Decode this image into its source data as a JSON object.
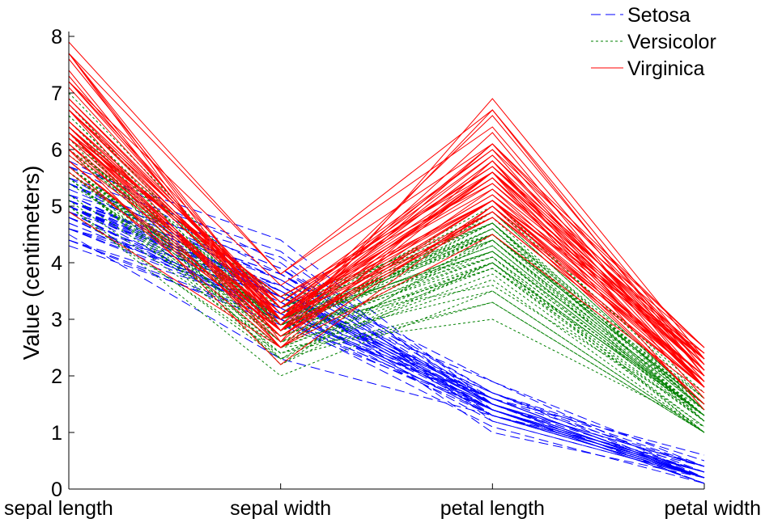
{
  "chart_data": {
    "type": "line",
    "subtype": "parallel-coordinates",
    "title": "",
    "xlabel": "",
    "ylabel": "Value (centimeters)",
    "categories": [
      "sepal length",
      "sepal width",
      "petal length",
      "petal width"
    ],
    "ylim": [
      0,
      8
    ],
    "yticks": [
      "0",
      "1",
      "2",
      "3",
      "4",
      "5",
      "6",
      "7",
      "8"
    ],
    "grid": false,
    "legend": {
      "position": "top-right",
      "boxed": false
    },
    "series": [
      {
        "name": "Setosa",
        "color": "#0000ff",
        "line_style": "dashed",
        "values": [
          [
            5.1,
            3.5,
            1.4,
            0.2
          ],
          [
            4.9,
            3.0,
            1.4,
            0.2
          ],
          [
            4.7,
            3.2,
            1.3,
            0.2
          ],
          [
            4.6,
            3.1,
            1.5,
            0.2
          ],
          [
            5.0,
            3.6,
            1.4,
            0.2
          ],
          [
            5.4,
            3.9,
            1.7,
            0.4
          ],
          [
            4.6,
            3.4,
            1.4,
            0.3
          ],
          [
            5.0,
            3.4,
            1.5,
            0.2
          ],
          [
            4.4,
            2.9,
            1.4,
            0.2
          ],
          [
            4.9,
            3.1,
            1.5,
            0.1
          ],
          [
            5.4,
            3.7,
            1.5,
            0.2
          ],
          [
            4.8,
            3.4,
            1.6,
            0.2
          ],
          [
            4.8,
            3.0,
            1.4,
            0.1
          ],
          [
            4.3,
            3.0,
            1.1,
            0.1
          ],
          [
            5.8,
            4.0,
            1.2,
            0.2
          ],
          [
            5.7,
            4.4,
            1.5,
            0.4
          ],
          [
            5.4,
            3.9,
            1.3,
            0.4
          ],
          [
            5.1,
            3.5,
            1.4,
            0.3
          ],
          [
            5.7,
            3.8,
            1.7,
            0.3
          ],
          [
            5.1,
            3.8,
            1.5,
            0.3
          ],
          [
            5.4,
            3.4,
            1.7,
            0.2
          ],
          [
            5.1,
            3.7,
            1.5,
            0.4
          ],
          [
            4.6,
            3.6,
            1.0,
            0.2
          ],
          [
            5.1,
            3.3,
            1.7,
            0.5
          ],
          [
            4.8,
            3.4,
            1.9,
            0.2
          ],
          [
            5.0,
            3.0,
            1.6,
            0.2
          ],
          [
            5.0,
            3.4,
            1.6,
            0.4
          ],
          [
            5.2,
            3.5,
            1.5,
            0.2
          ],
          [
            5.2,
            3.4,
            1.4,
            0.2
          ],
          [
            4.7,
            3.2,
            1.6,
            0.2
          ],
          [
            4.8,
            3.1,
            1.6,
            0.2
          ],
          [
            5.4,
            3.4,
            1.5,
            0.4
          ],
          [
            5.2,
            4.1,
            1.5,
            0.1
          ],
          [
            5.5,
            4.2,
            1.4,
            0.2
          ],
          [
            4.9,
            3.1,
            1.5,
            0.2
          ],
          [
            5.0,
            3.2,
            1.2,
            0.2
          ],
          [
            5.5,
            3.5,
            1.3,
            0.2
          ],
          [
            4.9,
            3.6,
            1.4,
            0.1
          ],
          [
            4.4,
            3.0,
            1.3,
            0.2
          ],
          [
            5.1,
            3.4,
            1.5,
            0.2
          ],
          [
            5.0,
            3.5,
            1.3,
            0.3
          ],
          [
            4.5,
            2.3,
            1.3,
            0.3
          ],
          [
            4.4,
            3.2,
            1.3,
            0.2
          ],
          [
            5.0,
            3.5,
            1.6,
            0.6
          ],
          [
            5.1,
            3.8,
            1.9,
            0.4
          ],
          [
            4.8,
            3.0,
            1.4,
            0.3
          ],
          [
            5.1,
            3.8,
            1.6,
            0.2
          ],
          [
            4.6,
            3.2,
            1.4,
            0.2
          ],
          [
            5.3,
            3.7,
            1.5,
            0.2
          ],
          [
            5.0,
            3.3,
            1.4,
            0.2
          ]
        ]
      },
      {
        "name": "Versicolor",
        "color": "#008000",
        "line_style": "dotted",
        "values": [
          [
            7.0,
            3.2,
            4.7,
            1.4
          ],
          [
            6.4,
            3.2,
            4.5,
            1.5
          ],
          [
            6.9,
            3.1,
            4.9,
            1.5
          ],
          [
            5.5,
            2.3,
            4.0,
            1.3
          ],
          [
            6.5,
            2.8,
            4.6,
            1.5
          ],
          [
            5.7,
            2.8,
            4.5,
            1.3
          ],
          [
            6.3,
            3.3,
            4.7,
            1.6
          ],
          [
            4.9,
            2.4,
            3.3,
            1.0
          ],
          [
            6.6,
            2.9,
            4.6,
            1.3
          ],
          [
            5.2,
            2.7,
            3.9,
            1.4
          ],
          [
            5.0,
            2.0,
            3.5,
            1.0
          ],
          [
            5.9,
            3.0,
            4.2,
            1.5
          ],
          [
            6.0,
            2.2,
            4.0,
            1.0
          ],
          [
            6.1,
            2.9,
            4.7,
            1.4
          ],
          [
            5.6,
            2.9,
            3.6,
            1.3
          ],
          [
            6.7,
            3.1,
            4.4,
            1.4
          ],
          [
            5.6,
            3.0,
            4.5,
            1.5
          ],
          [
            5.8,
            2.7,
            4.1,
            1.0
          ],
          [
            6.2,
            2.2,
            4.5,
            1.5
          ],
          [
            5.6,
            2.5,
            3.9,
            1.1
          ],
          [
            5.9,
            3.2,
            4.8,
            1.8
          ],
          [
            6.1,
            2.8,
            4.0,
            1.3
          ],
          [
            6.3,
            2.5,
            4.9,
            1.5
          ],
          [
            6.1,
            2.8,
            4.7,
            1.2
          ],
          [
            6.4,
            2.9,
            4.3,
            1.3
          ],
          [
            6.6,
            3.0,
            4.4,
            1.4
          ],
          [
            6.8,
            2.8,
            4.8,
            1.4
          ],
          [
            6.7,
            3.0,
            5.0,
            1.7
          ],
          [
            6.0,
            2.9,
            4.5,
            1.5
          ],
          [
            5.7,
            2.6,
            3.5,
            1.0
          ],
          [
            5.5,
            2.4,
            3.8,
            1.1
          ],
          [
            5.5,
            2.4,
            3.7,
            1.0
          ],
          [
            5.8,
            2.7,
            3.9,
            1.2
          ],
          [
            6.0,
            2.7,
            5.1,
            1.6
          ],
          [
            5.4,
            3.0,
            4.5,
            1.5
          ],
          [
            6.0,
            3.4,
            4.5,
            1.6
          ],
          [
            6.7,
            3.1,
            4.7,
            1.5
          ],
          [
            6.3,
            2.3,
            4.4,
            1.3
          ],
          [
            5.6,
            3.0,
            4.1,
            1.3
          ],
          [
            5.5,
            2.5,
            4.0,
            1.3
          ],
          [
            5.5,
            2.6,
            4.4,
            1.2
          ],
          [
            6.1,
            3.0,
            4.6,
            1.4
          ],
          [
            5.8,
            2.6,
            4.0,
            1.2
          ],
          [
            5.0,
            2.3,
            3.3,
            1.0
          ],
          [
            5.6,
            2.7,
            4.2,
            1.3
          ],
          [
            5.7,
            3.0,
            4.2,
            1.2
          ],
          [
            5.7,
            2.9,
            4.2,
            1.3
          ],
          [
            6.2,
            2.9,
            4.3,
            1.3
          ],
          [
            5.1,
            2.5,
            3.0,
            1.1
          ],
          [
            5.7,
            2.8,
            4.1,
            1.3
          ]
        ]
      },
      {
        "name": "Virginica",
        "color": "#ff0000",
        "line_style": "solid",
        "values": [
          [
            6.3,
            3.3,
            6.0,
            2.5
          ],
          [
            5.8,
            2.7,
            5.1,
            1.9
          ],
          [
            7.1,
            3.0,
            5.9,
            2.1
          ],
          [
            6.3,
            2.9,
            5.6,
            1.8
          ],
          [
            6.5,
            3.0,
            5.8,
            2.2
          ],
          [
            7.6,
            3.0,
            6.6,
            2.1
          ],
          [
            4.9,
            2.5,
            4.5,
            1.7
          ],
          [
            7.3,
            2.9,
            6.3,
            1.8
          ],
          [
            6.7,
            2.5,
            5.8,
            1.8
          ],
          [
            7.2,
            3.6,
            6.1,
            2.5
          ],
          [
            6.5,
            3.2,
            5.1,
            2.0
          ],
          [
            6.4,
            2.7,
            5.3,
            1.9
          ],
          [
            6.8,
            3.0,
            5.5,
            2.1
          ],
          [
            5.7,
            2.5,
            5.0,
            2.0
          ],
          [
            5.8,
            2.8,
            5.1,
            2.4
          ],
          [
            6.4,
            3.2,
            5.3,
            2.3
          ],
          [
            6.5,
            3.0,
            5.5,
            1.8
          ],
          [
            7.7,
            3.8,
            6.7,
            2.2
          ],
          [
            7.7,
            2.6,
            6.9,
            2.3
          ],
          [
            6.0,
            2.2,
            5.0,
            1.5
          ],
          [
            6.9,
            3.2,
            5.7,
            2.3
          ],
          [
            5.6,
            2.8,
            4.9,
            2.0
          ],
          [
            7.7,
            2.8,
            6.7,
            2.0
          ],
          [
            6.3,
            2.7,
            4.9,
            1.8
          ],
          [
            6.7,
            3.3,
            5.7,
            2.1
          ],
          [
            7.2,
            3.2,
            6.0,
            1.8
          ],
          [
            6.2,
            2.8,
            4.8,
            1.8
          ],
          [
            6.1,
            3.0,
            4.9,
            1.8
          ],
          [
            6.4,
            2.8,
            5.6,
            2.1
          ],
          [
            7.2,
            3.0,
            5.8,
            1.6
          ],
          [
            7.4,
            2.8,
            6.1,
            1.9
          ],
          [
            7.9,
            3.8,
            6.4,
            2.0
          ],
          [
            6.4,
            2.8,
            5.6,
            2.2
          ],
          [
            6.3,
            2.8,
            5.1,
            1.5
          ],
          [
            6.1,
            2.6,
            5.6,
            1.4
          ],
          [
            7.7,
            3.0,
            6.1,
            2.3
          ],
          [
            6.3,
            3.4,
            5.6,
            2.4
          ],
          [
            6.4,
            3.1,
            5.5,
            1.8
          ],
          [
            6.0,
            3.0,
            4.8,
            1.8
          ],
          [
            6.9,
            3.1,
            5.4,
            2.1
          ],
          [
            6.7,
            3.1,
            5.6,
            2.4
          ],
          [
            6.9,
            3.1,
            5.1,
            2.3
          ],
          [
            5.8,
            2.7,
            5.1,
            1.9
          ],
          [
            6.8,
            3.2,
            5.9,
            2.3
          ],
          [
            6.7,
            3.3,
            5.7,
            2.5
          ],
          [
            6.7,
            3.0,
            5.2,
            2.3
          ],
          [
            6.3,
            2.5,
            5.0,
            1.9
          ],
          [
            6.5,
            3.0,
            5.2,
            2.0
          ],
          [
            6.2,
            3.4,
            5.4,
            2.3
          ],
          [
            5.9,
            3.0,
            5.1,
            1.8
          ]
        ]
      }
    ]
  }
}
